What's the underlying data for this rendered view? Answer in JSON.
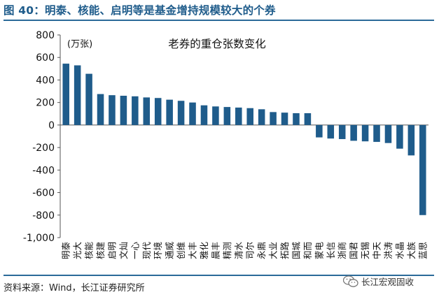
{
  "figure": {
    "title": "图 40：明泰、核能、启明等是基金增持规模较大的个券",
    "source": "资料来源：Wind，长江证券研究所",
    "watermark": "长江宏观固收",
    "watermark_icon": "wechat-logo-icon"
  },
  "colors": {
    "bar": "#1f5c8b",
    "title": "#1f5c8b",
    "rule": "#2b6a99"
  },
  "chart_data": {
    "type": "bar",
    "title": "老券的重仓张数变化",
    "ylabel": "(万张)",
    "xlabel": "",
    "ylim": [
      -1000,
      800
    ],
    "yticks": [
      800,
      600,
      400,
      200,
      0,
      -200,
      -400,
      -600,
      -800,
      -1000
    ],
    "ytick_labels": [
      "800",
      "600",
      "400",
      "200",
      "0",
      "-200",
      "-400",
      "-600",
      "-800",
      "-1,000"
    ],
    "grid": false,
    "categories": [
      "明泰",
      "光大",
      "核能",
      "核建",
      "启明",
      "文灿",
      "一心",
      "现代",
      "环境",
      "通威",
      "创维",
      "大丰",
      "雅化",
      "晨丰",
      "精测",
      "清水",
      "司尔",
      "永鼎",
      "大业",
      "拓路",
      "国城",
      "和而",
      "蒙电",
      "长信",
      "浙商",
      "国君",
      "无锡",
      "中天",
      "洪涛",
      "水晶",
      "大族",
      "蓝思"
    ],
    "values": [
      545,
      530,
      455,
      275,
      265,
      260,
      255,
      245,
      240,
      225,
      215,
      200,
      175,
      165,
      160,
      155,
      150,
      140,
      115,
      110,
      105,
      105,
      -110,
      -120,
      -125,
      -140,
      -145,
      -150,
      -160,
      -210,
      -270,
      -800
    ]
  }
}
